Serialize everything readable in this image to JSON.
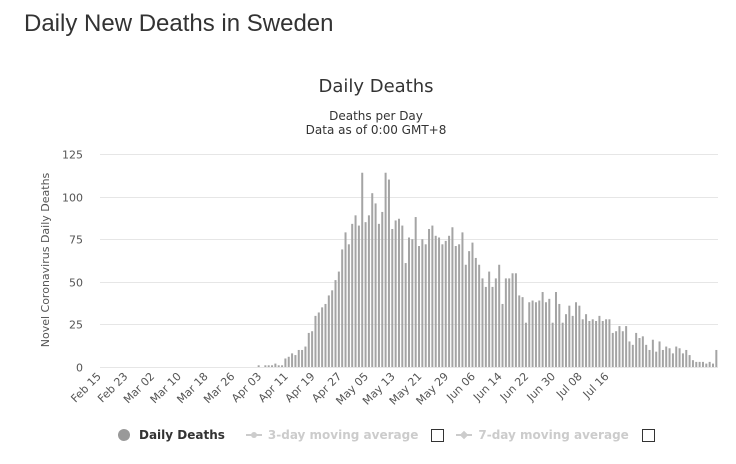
{
  "page": {
    "heading": "Daily New Deaths in Sweden"
  },
  "chart_data": {
    "type": "bar",
    "title": "Daily Deaths",
    "subtitle": "Deaths per Day",
    "subtitle2": "Data as of 0:00 GMT+8",
    "ylabel": "Novel Coronavirus Daily Deaths",
    "xlabel": "",
    "ylim": [
      0,
      125
    ],
    "yticks": [
      0,
      25,
      50,
      75,
      100,
      125
    ],
    "grid": true,
    "tick_every_days": 8,
    "tick_labels": [
      "Feb 15",
      "Feb 23",
      "Mar 02",
      "Mar 10",
      "Mar 18",
      "Mar 26",
      "Apr 03",
      "Apr 11",
      "Apr 19",
      "Apr 27",
      "May 05",
      "May 13",
      "May 21",
      "May 29",
      "Jun 06",
      "Jun 14",
      "Jun 22",
      "Jun 30",
      "Jul 08",
      "Jul 16"
    ],
    "start_date": "Feb 15",
    "series": [
      {
        "name": "Daily Deaths",
        "color": "#a4a4a4",
        "values": [
          0,
          0,
          0,
          0,
          0,
          0,
          0,
          0,
          0,
          0,
          0,
          0,
          0,
          0,
          0,
          0,
          0,
          0,
          0,
          0,
          0,
          0,
          0,
          0,
          0,
          0,
          0,
          0,
          0,
          0,
          0,
          0,
          0,
          0,
          0,
          0,
          0,
          0,
          0,
          0,
          0,
          0,
          0,
          0,
          0,
          0,
          0,
          1,
          0,
          1,
          1,
          1,
          2,
          1,
          1,
          5,
          6,
          8,
          7,
          10,
          10,
          12,
          20,
          21,
          30,
          32,
          35,
          37,
          42,
          45,
          51,
          56,
          69,
          79,
          72,
          84,
          89,
          83,
          114,
          85,
          89,
          102,
          96,
          84,
          91,
          114,
          110,
          81,
          86,
          87,
          83,
          61,
          76,
          75,
          88,
          71,
          75,
          72,
          81,
          83,
          77,
          76,
          72,
          74,
          77,
          82,
          71,
          72,
          79,
          60,
          68,
          73,
          64,
          60,
          52,
          47,
          56,
          47,
          52,
          60,
          37,
          52,
          52,
          55,
          55,
          42,
          41,
          26,
          38,
          39,
          38,
          39,
          44,
          38,
          40,
          26,
          44,
          37,
          26,
          31,
          36,
          30,
          38,
          36,
          28,
          31,
          27,
          28,
          27,
          30,
          27,
          28,
          28,
          20,
          21,
          24,
          21,
          24,
          15,
          13,
          20,
          17,
          18,
          13,
          10,
          16,
          9,
          15,
          10,
          12,
          11,
          8,
          12,
          11,
          8,
          10,
          7,
          4,
          3,
          3,
          3,
          2,
          3,
          2,
          10
        ]
      }
    ]
  },
  "legend": {
    "items": [
      {
        "label": "Daily Deaths",
        "state": "active"
      },
      {
        "label": "3-day moving average",
        "state": "inactive"
      },
      {
        "label": "7-day moving average",
        "state": "inactive"
      }
    ]
  },
  "colors": {
    "bar": "#a4a4a4",
    "grid": "#e6e6e6",
    "text": "#333333",
    "inactive": "#cccccc"
  }
}
